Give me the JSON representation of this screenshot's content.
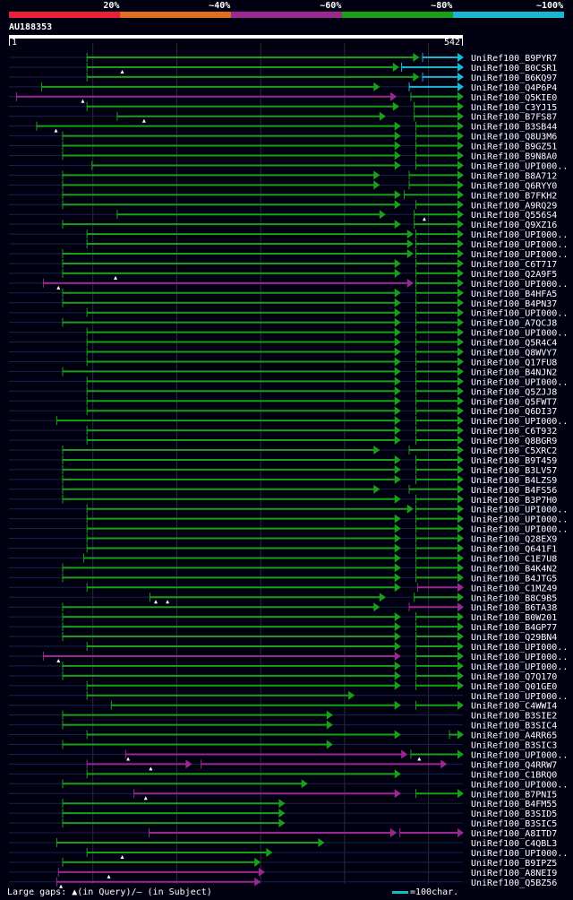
{
  "chart_data": {
    "type": "alignment-overview",
    "query": "AU188353",
    "query_length": 542,
    "ruler": {
      "start": "1",
      "end": "542"
    },
    "legend": [
      {
        "label": "20%",
        "color": "#e8203a"
      },
      {
        "label": "~40%",
        "color": "#e07020"
      },
      {
        "label": "~60%",
        "color": "#9a2890"
      },
      {
        "label": "~80%",
        "color": "#18a018"
      },
      {
        "label": "~100%",
        "color": "#18b8d0"
      }
    ],
    "hits": [
      {
        "name": "UniRef100_B9PYR7",
        "segs": [
          [
            94,
            489,
            "g"
          ],
          [
            494,
            542,
            "c"
          ]
        ]
      },
      {
        "name": "UniRef100_B0CSR1",
        "segs": [
          [
            94,
            465,
            "g"
          ],
          [
            469,
            542,
            "c"
          ]
        ],
        "gaps": [
          136
        ]
      },
      {
        "name": "UniRef100_B6KQ97",
        "segs": [
          [
            94,
            489,
            "g"
          ],
          [
            494,
            542,
            "c"
          ]
        ]
      },
      {
        "name": "UniRef100_Q4P6P4",
        "segs": [
          [
            40,
            442,
            "g"
          ],
          [
            478,
            542,
            "c"
          ]
        ]
      },
      {
        "name": "UniRef100_Q5KIE0",
        "segs": [
          [
            10,
            462,
            "m"
          ],
          [
            480,
            542,
            "g"
          ]
        ],
        "gaps": [
          89
        ]
      },
      {
        "name": "UniRef100_C3YJ15",
        "segs": [
          [
            94,
            465,
            "g"
          ],
          [
            484,
            542,
            "g"
          ]
        ]
      },
      {
        "name": "UniRef100_B7FS87",
        "segs": [
          [
            130,
            449,
            "g"
          ],
          [
            484,
            542,
            "g"
          ]
        ],
        "gaps": [
          162
        ]
      },
      {
        "name": "UniRef100_B3SB44",
        "segs": [
          [
            34,
            467,
            "g"
          ],
          [
            486,
            542,
            "g"
          ]
        ],
        "gaps": [
          57
        ]
      },
      {
        "name": "UniRef100_Q8U3M6",
        "segs": [
          [
            65,
            467,
            "g"
          ],
          [
            486,
            542,
            "g"
          ]
        ]
      },
      {
        "name": "UniRef100_B9GZ51",
        "segs": [
          [
            65,
            467,
            "g"
          ],
          [
            486,
            542,
            "g"
          ]
        ]
      },
      {
        "name": "UniRef100_B9N8A0",
        "segs": [
          [
            65,
            467,
            "g"
          ],
          [
            486,
            542,
            "g"
          ]
        ]
      },
      {
        "name": "UniRef100_UPI000..",
        "segs": [
          [
            100,
            467,
            "g"
          ],
          [
            486,
            542,
            "g"
          ]
        ]
      },
      {
        "name": "UniRef100_B8A712",
        "segs": [
          [
            65,
            442,
            "g"
          ],
          [
            478,
            542,
            "g"
          ]
        ]
      },
      {
        "name": "UniRef100_Q6RYY0",
        "segs": [
          [
            65,
            442,
            "g"
          ],
          [
            478,
            542,
            "g"
          ]
        ]
      },
      {
        "name": "UniRef100_B7FKH2",
        "segs": [
          [
            65,
            467,
            "g"
          ],
          [
            472,
            542,
            "g"
          ]
        ]
      },
      {
        "name": "UniRef100_A9RQ29",
        "segs": [
          [
            65,
            467,
            "g"
          ],
          [
            486,
            542,
            "g"
          ]
        ]
      },
      {
        "name": "UniRef100_Q556S4",
        "segs": [
          [
            130,
            449,
            "g"
          ],
          [
            484,
            542,
            "g"
          ]
        ],
        "gaps": [
          496
        ]
      },
      {
        "name": "UniRef100_Q9XZ16",
        "segs": [
          [
            65,
            467,
            "g"
          ],
          [
            484,
            542,
            "g"
          ]
        ]
      },
      {
        "name": "UniRef100_UPI000..",
        "segs": [
          [
            94,
            482,
            "g"
          ],
          [
            486,
            542,
            "g"
          ]
        ]
      },
      {
        "name": "UniRef100_UPI000..",
        "segs": [
          [
            94,
            482,
            "g"
          ],
          [
            486,
            542,
            "g"
          ]
        ]
      },
      {
        "name": "UniRef100_UPI000..",
        "segs": [
          [
            65,
            482,
            "g"
          ],
          [
            486,
            542,
            "g"
          ]
        ]
      },
      {
        "name": "UniRef100_C6T717",
        "segs": [
          [
            65,
            467,
            "g"
          ],
          [
            486,
            542,
            "g"
          ]
        ]
      },
      {
        "name": "UniRef100_Q2A9F5",
        "segs": [
          [
            65,
            467,
            "g"
          ],
          [
            486,
            542,
            "g"
          ]
        ],
        "gaps": [
          128
        ]
      },
      {
        "name": "UniRef100_UPI000..",
        "segs": [
          [
            42,
            482,
            "m"
          ],
          [
            486,
            542,
            "g"
          ]
        ],
        "gaps": [
          60
        ]
      },
      {
        "name": "UniRef100_B4HFA5",
        "segs": [
          [
            65,
            467,
            "g"
          ],
          [
            486,
            542,
            "g"
          ]
        ]
      },
      {
        "name": "UniRef100_B4PN37",
        "segs": [
          [
            65,
            467,
            "g"
          ],
          [
            486,
            542,
            "g"
          ]
        ]
      },
      {
        "name": "UniRef100_UPI000..",
        "segs": [
          [
            94,
            467,
            "g"
          ],
          [
            486,
            542,
            "g"
          ]
        ]
      },
      {
        "name": "UniRef100_A7QCJ8",
        "segs": [
          [
            65,
            467,
            "g"
          ],
          [
            486,
            542,
            "g"
          ]
        ]
      },
      {
        "name": "UniRef100_UPI000..",
        "segs": [
          [
            94,
            467,
            "g"
          ],
          [
            486,
            542,
            "g"
          ]
        ]
      },
      {
        "name": "UniRef100_Q5R4C4",
        "segs": [
          [
            94,
            467,
            "g"
          ],
          [
            486,
            542,
            "g"
          ]
        ]
      },
      {
        "name": "UniRef100_Q8WVY7",
        "segs": [
          [
            94,
            467,
            "g"
          ],
          [
            486,
            542,
            "g"
          ]
        ]
      },
      {
        "name": "UniRef100_Q17FU8",
        "segs": [
          [
            94,
            467,
            "g"
          ],
          [
            486,
            542,
            "g"
          ]
        ]
      },
      {
        "name": "UniRef100_B4NJN2",
        "segs": [
          [
            65,
            467,
            "g"
          ],
          [
            486,
            542,
            "g"
          ]
        ]
      },
      {
        "name": "UniRef100_UPI000..",
        "segs": [
          [
            94,
            467,
            "g"
          ],
          [
            486,
            542,
            "g"
          ]
        ]
      },
      {
        "name": "UniRef100_Q5ZJJ8",
        "segs": [
          [
            94,
            467,
            "g"
          ],
          [
            486,
            542,
            "g"
          ]
        ]
      },
      {
        "name": "UniRef100_Q5FWT7",
        "segs": [
          [
            94,
            467,
            "g"
          ],
          [
            486,
            542,
            "g"
          ]
        ]
      },
      {
        "name": "UniRef100_Q6DI37",
        "segs": [
          [
            94,
            467,
            "g"
          ],
          [
            486,
            542,
            "g"
          ]
        ]
      },
      {
        "name": "UniRef100_UPI000..",
        "segs": [
          [
            58,
            467,
            "g"
          ],
          [
            486,
            542,
            "g"
          ]
        ]
      },
      {
        "name": "UniRef100_C6T932",
        "segs": [
          [
            94,
            467,
            "g"
          ],
          [
            486,
            542,
            "g"
          ]
        ]
      },
      {
        "name": "UniRef100_Q8BGR9",
        "segs": [
          [
            94,
            467,
            "g"
          ],
          [
            486,
            542,
            "g"
          ]
        ]
      },
      {
        "name": "UniRef100_C5XRC2",
        "segs": [
          [
            65,
            442,
            "g"
          ],
          [
            478,
            542,
            "g"
          ]
        ]
      },
      {
        "name": "UniRef100_B9T459",
        "segs": [
          [
            65,
            467,
            "g"
          ],
          [
            486,
            542,
            "g"
          ]
        ]
      },
      {
        "name": "UniRef100_B3LV57",
        "segs": [
          [
            65,
            467,
            "g"
          ],
          [
            486,
            542,
            "g"
          ]
        ]
      },
      {
        "name": "UniRef100_B4LZS9",
        "segs": [
          [
            65,
            467,
            "g"
          ],
          [
            486,
            542,
            "g"
          ]
        ]
      },
      {
        "name": "UniRef100_B4FS56",
        "segs": [
          [
            65,
            442,
            "g"
          ],
          [
            478,
            542,
            "g"
          ]
        ]
      },
      {
        "name": "UniRef100_B3P7H0",
        "segs": [
          [
            65,
            467,
            "g"
          ],
          [
            486,
            542,
            "g"
          ]
        ]
      },
      {
        "name": "UniRef100_UPI000..",
        "segs": [
          [
            94,
            482,
            "g"
          ],
          [
            486,
            542,
            "g"
          ]
        ]
      },
      {
        "name": "UniRef100_UPI000..",
        "segs": [
          [
            94,
            467,
            "g"
          ],
          [
            486,
            542,
            "g"
          ]
        ]
      },
      {
        "name": "UniRef100_UPI000..",
        "segs": [
          [
            94,
            467,
            "g"
          ],
          [
            486,
            542,
            "g"
          ]
        ]
      },
      {
        "name": "UniRef100_Q28EX9",
        "segs": [
          [
            94,
            467,
            "g"
          ],
          [
            486,
            542,
            "g"
          ]
        ]
      },
      {
        "name": "UniRef100_Q641F1",
        "segs": [
          [
            94,
            467,
            "g"
          ],
          [
            486,
            542,
            "g"
          ]
        ]
      },
      {
        "name": "UniRef100_C1E7U8",
        "segs": [
          [
            90,
            467,
            "g"
          ],
          [
            486,
            542,
            "g"
          ]
        ]
      },
      {
        "name": "UniRef100_B4K4N2",
        "segs": [
          [
            65,
            467,
            "g"
          ],
          [
            486,
            542,
            "g"
          ]
        ]
      },
      {
        "name": "UniRef100_B4JTG5",
        "segs": [
          [
            65,
            467,
            "g"
          ],
          [
            486,
            542,
            "g"
          ]
        ]
      },
      {
        "name": "UniRef100_C1MZ49",
        "segs": [
          [
            94,
            467,
            "g"
          ],
          [
            488,
            542,
            "m"
          ]
        ]
      },
      {
        "name": "UniRef100_B8C9B5",
        "segs": [
          [
            169,
            449,
            "g"
          ],
          [
            484,
            542,
            "g"
          ]
        ],
        "gaps": [
          176,
          190
        ]
      },
      {
        "name": "UniRef100_B6TA38",
        "segs": [
          [
            65,
            442,
            "g"
          ],
          [
            478,
            542,
            "m"
          ]
        ]
      },
      {
        "name": "UniRef100_B0W201",
        "segs": [
          [
            65,
            467,
            "g"
          ],
          [
            486,
            542,
            "g"
          ]
        ]
      },
      {
        "name": "UniRef100_B4GP77",
        "segs": [
          [
            65,
            467,
            "g"
          ],
          [
            486,
            542,
            "g"
          ]
        ]
      },
      {
        "name": "UniRef100_Q29BN4",
        "segs": [
          [
            65,
            467,
            "g"
          ],
          [
            486,
            542,
            "g"
          ]
        ]
      },
      {
        "name": "UniRef100_UPI000..",
        "segs": [
          [
            94,
            467,
            "g"
          ],
          [
            486,
            542,
            "g"
          ]
        ]
      },
      {
        "name": "UniRef100_UPI000..",
        "segs": [
          [
            42,
            467,
            "m"
          ],
          [
            486,
            542,
            "g"
          ]
        ],
        "gaps": [
          60
        ]
      },
      {
        "name": "UniRef100_UPI000..",
        "segs": [
          [
            65,
            467,
            "g"
          ],
          [
            486,
            542,
            "g"
          ]
        ]
      },
      {
        "name": "UniRef100_Q7Q170",
        "segs": [
          [
            65,
            467,
            "g"
          ],
          [
            486,
            542,
            "g"
          ]
        ]
      },
      {
        "name": "UniRef100_Q01GE0",
        "segs": [
          [
            94,
            467,
            "g"
          ],
          [
            486,
            542,
            "g"
          ]
        ]
      },
      {
        "name": "UniRef100_UPI000..",
        "segs": [
          [
            94,
            412,
            "g"
          ]
        ]
      },
      {
        "name": "UniRef100_C4WWI4",
        "segs": [
          [
            123,
            467,
            "g"
          ],
          [
            486,
            542,
            "g"
          ]
        ]
      },
      {
        "name": "UniRef100_B3SIE2",
        "segs": [
          [
            65,
            386,
            "g"
          ]
        ]
      },
      {
        "name": "UniRef100_B3SIC4",
        "segs": [
          [
            65,
            386,
            "g"
          ]
        ]
      },
      {
        "name": "UniRef100_A4RR65",
        "segs": [
          [
            94,
            467,
            "g"
          ],
          [
            526,
            542,
            "g"
          ]
        ]
      },
      {
        "name": "UniRef100_B3SIC3",
        "segs": [
          [
            65,
            386,
            "g"
          ]
        ]
      },
      {
        "name": "UniRef100_UPI000..",
        "segs": [
          [
            140,
            475,
            "m"
          ],
          [
            480,
            542,
            "g"
          ]
        ],
        "gaps": [
          143,
          490
        ]
      },
      {
        "name": "UniRef100_Q4RRW7",
        "segs": [
          [
            94,
            218,
            "m"
          ],
          [
            230,
            522,
            "m"
          ]
        ],
        "gaps": [
          170
        ]
      },
      {
        "name": "UniRef100_C1BRQ0",
        "segs": [
          [
            94,
            467,
            "g"
          ]
        ]
      },
      {
        "name": "UniRef100_UPI000..",
        "segs": [
          [
            65,
            356,
            "g"
          ]
        ]
      },
      {
        "name": "UniRef100_B7PNI5",
        "segs": [
          [
            150,
            467,
            "m"
          ],
          [
            486,
            542,
            "g"
          ]
        ],
        "gaps": [
          164
        ]
      },
      {
        "name": "UniRef100_B4FM55",
        "segs": [
          [
            65,
            329,
            "g"
          ]
        ]
      },
      {
        "name": "UniRef100_B3SID5",
        "segs": [
          [
            65,
            329,
            "g"
          ]
        ]
      },
      {
        "name": "UniRef100_B3SIC5",
        "segs": [
          [
            65,
            329,
            "g"
          ]
        ]
      },
      {
        "name": "UniRef100_A8ITD7",
        "segs": [
          [
            168,
            462,
            "m"
          ],
          [
            467,
            542,
            "m"
          ]
        ]
      },
      {
        "name": "UniRef100_C4QBL3",
        "segs": [
          [
            58,
            376,
            "g"
          ]
        ]
      },
      {
        "name": "UniRef100_UPI000..",
        "segs": [
          [
            94,
            314,
            "g"
          ]
        ],
        "gaps": [
          136
        ]
      },
      {
        "name": "UniRef100_B9IPZ5",
        "segs": [
          [
            65,
            300,
            "g"
          ]
        ]
      },
      {
        "name": "UniRef100_A8NEI9",
        "segs": [
          [
            60,
            305,
            "m"
          ]
        ],
        "gaps": [
          120
        ]
      },
      {
        "name": "UniRef100_Q5BZ56",
        "segs": [
          [
            58,
            300,
            "m"
          ]
        ],
        "gaps": [
          63
        ]
      }
    ]
  },
  "footer": {
    "gaps_text": "Large gaps: ▲(in Query)/– (in Subject)",
    "scale_text": "=100char."
  },
  "colors": {
    "g": "#18a018",
    "c": "#18b8d0",
    "m": "#9a2890"
  }
}
